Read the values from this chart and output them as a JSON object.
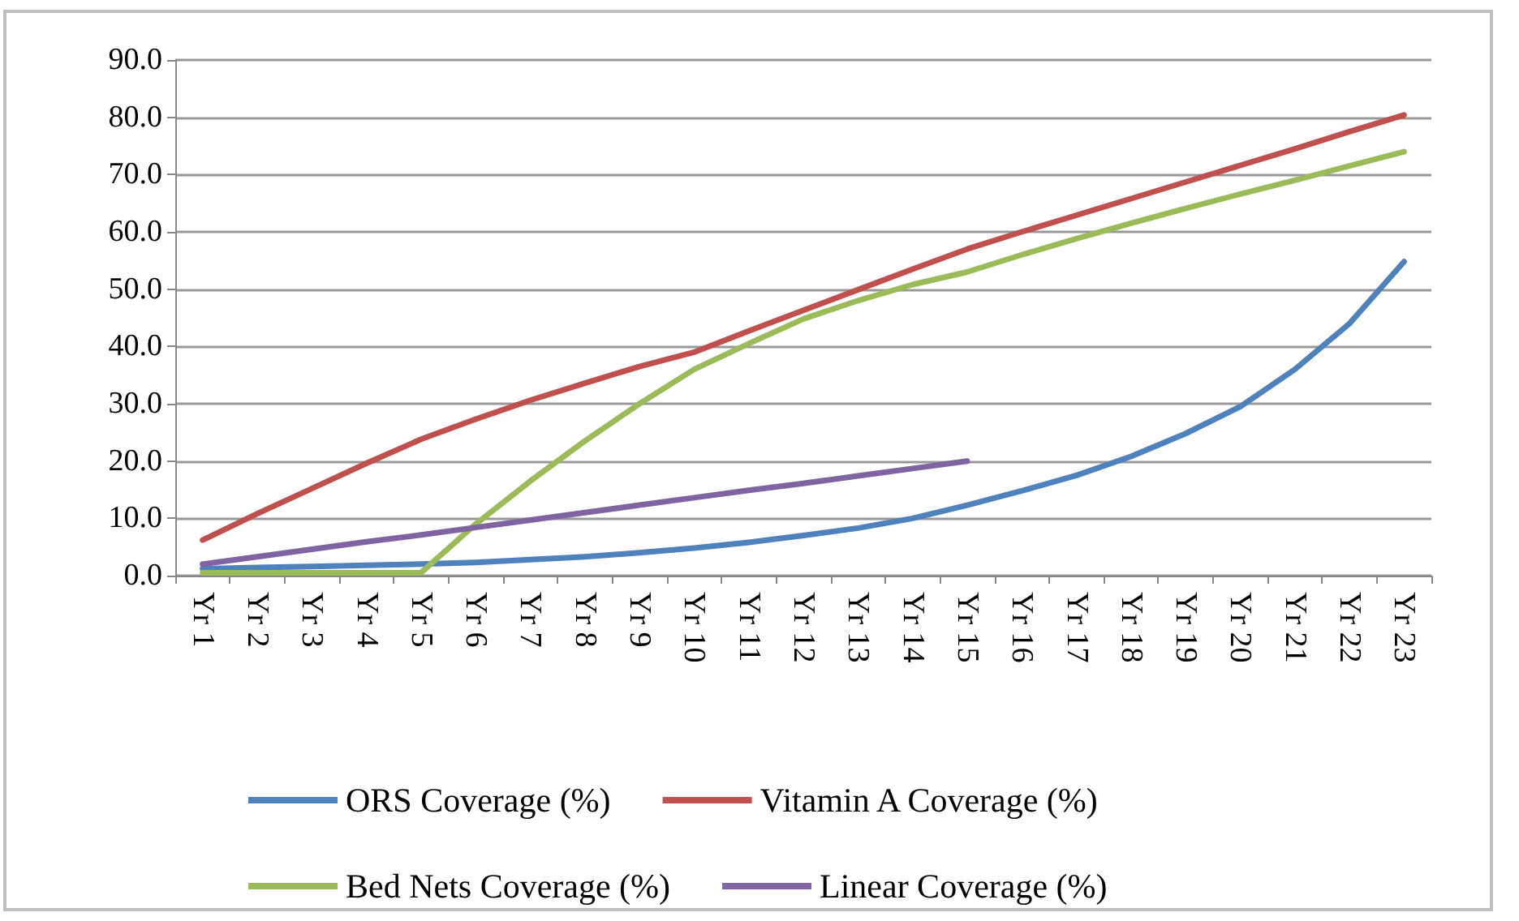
{
  "chart_data": {
    "type": "line",
    "categories": [
      "Yr 1",
      "Yr 2",
      "Yr 3",
      "Yr 4",
      "Yr 5",
      "Yr 6",
      "Yr 7",
      "Yr 8",
      "Yr 9",
      "Yr 10",
      "Yr 11",
      "Yr 12",
      "Yr 13",
      "Yr 14",
      "Yr 15",
      "Yr 16",
      "Yr 17",
      "Yr 18",
      "Yr 19",
      "Yr 20",
      "Yr 21",
      "Yr 22",
      "Yr 23"
    ],
    "series": [
      {
        "name": "ORS Coverage (%)",
        "color": "#4f81bd",
        "values": [
          1.2,
          1.4,
          1.6,
          1.8,
          2.0,
          2.3,
          2.8,
          3.3,
          4.0,
          4.8,
          5.8,
          7.0,
          8.3,
          10.0,
          12.3,
          14.8,
          17.5,
          20.8,
          24.8,
          29.5,
          36.0,
          44.0,
          54.8
        ]
      },
      {
        "name": "Vitamin A Coverage (%)",
        "color": "#c0504d",
        "values": [
          6.2,
          10.8,
          15.2,
          19.6,
          23.8,
          27.3,
          30.6,
          33.6,
          36.5,
          39.0,
          42.7,
          46.3,
          49.9,
          53.5,
          57.0,
          60.0,
          62.9,
          65.8,
          68.7,
          71.6,
          74.5,
          77.5,
          80.4
        ]
      },
      {
        "name": "Bed Nets Coverage (%)",
        "color": "#9bbb59",
        "values": [
          0.5,
          0.5,
          0.5,
          0.5,
          0.5,
          9.0,
          16.5,
          23.5,
          30.0,
          36.0,
          40.5,
          44.8,
          48.0,
          50.8,
          53.0,
          56.0,
          58.8,
          61.5,
          64.1,
          66.6,
          69.0,
          71.5,
          74.0
        ]
      },
      {
        "name": "Linear Coverage (%)",
        "color": "#8064a2",
        "values": [
          2.0,
          3.3,
          4.6,
          5.9,
          7.1,
          8.4,
          9.7,
          11.0,
          12.3,
          13.6,
          14.9,
          16.1,
          17.4,
          18.7,
          20.0,
          null,
          null,
          null,
          null,
          null,
          null,
          null,
          null
        ]
      }
    ],
    "ylim": [
      0,
      90
    ],
    "yticks": [
      {
        "value": 0,
        "label": "0.0"
      },
      {
        "value": 10,
        "label": "10.0"
      },
      {
        "value": 20,
        "label": "20.0"
      },
      {
        "value": 30,
        "label": "30.0"
      },
      {
        "value": 40,
        "label": "40.0"
      },
      {
        "value": 50,
        "label": "50.0"
      },
      {
        "value": 60,
        "label": "60.0"
      },
      {
        "value": 70,
        "label": "70.0"
      },
      {
        "value": 80,
        "label": "80.0"
      },
      {
        "value": 90,
        "label": "90.0"
      }
    ],
    "grid": "y",
    "legend": "bottom",
    "marker": "none",
    "line_style": "solid"
  }
}
